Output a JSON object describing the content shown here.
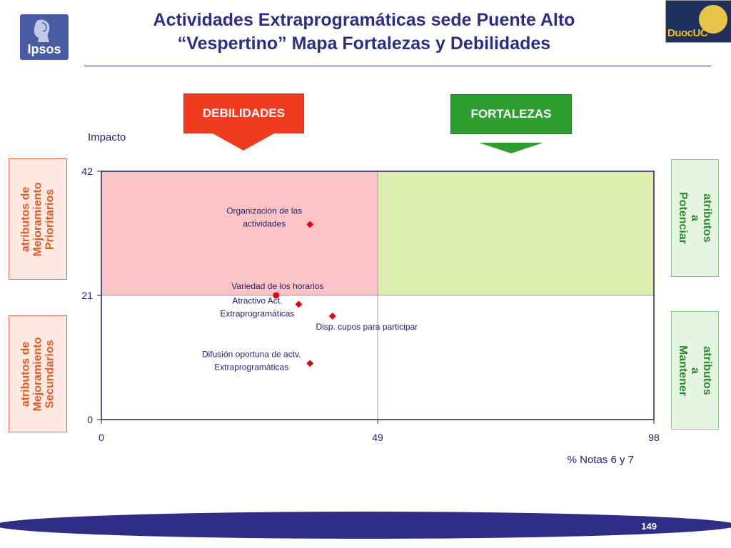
{
  "header": {
    "title_line1": "Actividades Extraprogramáticas sede Puente Alto",
    "title_line2": "“Vespertino” Mapa Fortalezas y Debilidades",
    "logo_left_text": "Ipsos",
    "logo_right_text": "DuocUC"
  },
  "tags": {
    "debilidades": "DEBILIDADES",
    "fortalezas": "FORTALEZAS"
  },
  "side_labels": {
    "top_left": "atributos de Mejoramiento Prioritarios",
    "bottom_left": "atributos de Mejoramiento Secundarios",
    "top_right": "atributos a Potenciar",
    "bottom_right": "atributos a Mantener"
  },
  "colors": {
    "title": "#2e2e86",
    "debilidades": "#ef3b1f",
    "fortalezas": "#2e9f2e",
    "quadrant_top_left": "#fcc4c4",
    "quadrant_top_right": "#deecae",
    "point": "#e3000f",
    "footer": "#2e2e86"
  },
  "chart_data": {
    "type": "scatter",
    "ylabel": "Impacto",
    "xlabel": "% Notas 6 y 7",
    "xlim": [
      0,
      98
    ],
    "ylim": [
      0,
      42
    ],
    "x_ticks": [
      0,
      49,
      98
    ],
    "y_ticks": [
      0,
      21,
      42
    ],
    "x_divider": 49,
    "y_divider": 21,
    "points": [
      {
        "label": "Organización de las actividades",
        "x": 37,
        "y": 33,
        "marker": "diamond"
      },
      {
        "label": "Variedad de los horarios",
        "x": 31,
        "y": 21,
        "marker": "circle"
      },
      {
        "label": "Atractivo Act. Extraprogramáticas",
        "x": 35,
        "y": 19.5,
        "marker": "diamond"
      },
      {
        "label": "Disp. cupos para participar",
        "x": 41,
        "y": 17.5,
        "marker": "diamond"
      },
      {
        "label": "Difusión oportuna de actv. Extraprogramáticas",
        "x": 37,
        "y": 9.5,
        "marker": "diamond"
      }
    ]
  },
  "footer": {
    "page_number": "149"
  }
}
